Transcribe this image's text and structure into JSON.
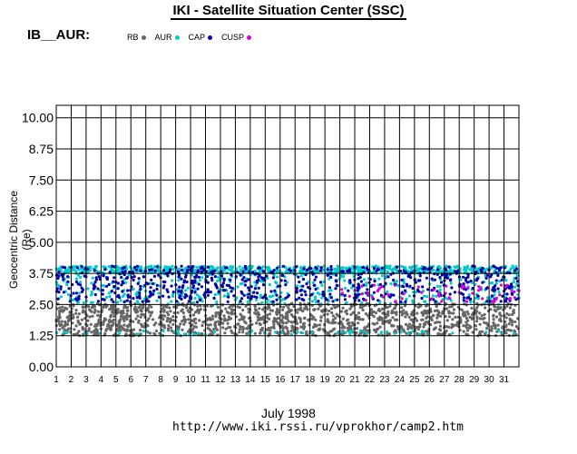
{
  "header": {
    "title": "IKI - Satellite Situation Center (SSC)",
    "subtitle": "IB__AUR:"
  },
  "legend": [
    {
      "label": "RB",
      "color": "#666666"
    },
    {
      "label": "AUR",
      "color": "#00cccc"
    },
    {
      "label": "CAP",
      "color": "#0000aa"
    },
    {
      "label": "CUSP",
      "color": "#dd00dd"
    }
  ],
  "footer": {
    "url": "http://www.iki.rssi.ru/vprokhor/camp2.htm"
  },
  "chart_data": {
    "type": "scatter",
    "title": "IKI - Satellite Situation Center (SSC)",
    "xlabel": "July    1998",
    "ylabel": "Geocentric Distance (Re)",
    "xlim": [
      1,
      32
    ],
    "ylim": [
      0,
      10.5
    ],
    "x_ticks": [
      "1",
      "2",
      "3",
      "4",
      "5",
      "6",
      "7",
      "8",
      "9",
      "10",
      "11",
      "12",
      "13",
      "14",
      "15",
      "16",
      "17",
      "18",
      "19",
      "20",
      "21",
      "22",
      "23",
      "24",
      "25",
      "26",
      "27",
      "28",
      "29",
      "30",
      "31"
    ],
    "y_ticks": [
      "0.00",
      "1.25",
      "2.50",
      "3.75",
      "5.00",
      "6.25",
      "7.50",
      "8.75",
      "10.00"
    ],
    "y_tick_values": [
      0,
      1.25,
      2.5,
      3.75,
      5.0,
      6.25,
      7.5,
      8.75,
      10.0
    ],
    "grid": true,
    "legend_position": "top",
    "series": [
      {
        "name": "RB",
        "color": "#666666",
        "range": [
          1.25,
          2.55
        ]
      },
      {
        "name": "AUR",
        "color": "#00cccc",
        "range": [
          1.25,
          4.05
        ]
      },
      {
        "name": "CAP",
        "color": "#0000aa",
        "range": [
          2.6,
          4.05
        ]
      },
      {
        "name": "CUSP",
        "color": "#dd00dd",
        "range": [
          2.6,
          3.3
        ]
      }
    ]
  }
}
